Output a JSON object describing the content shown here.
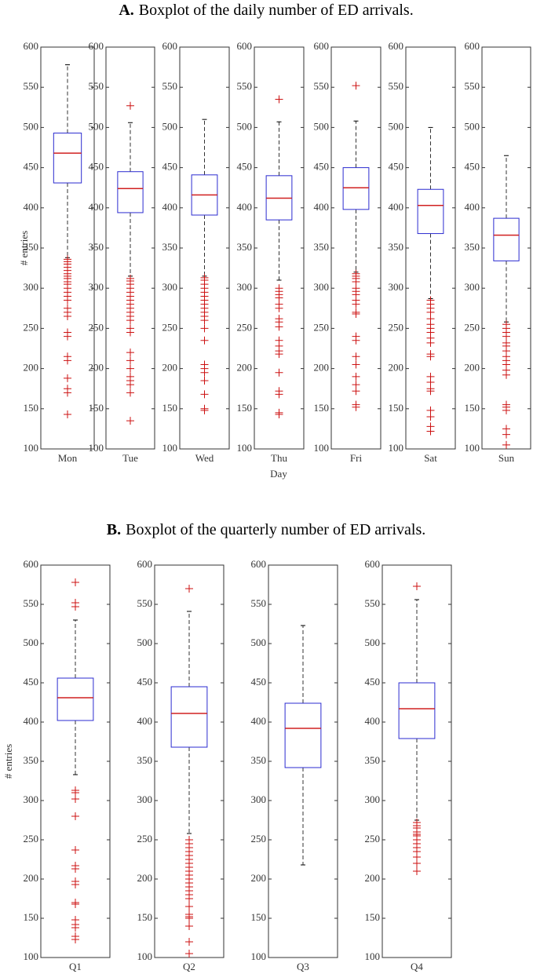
{
  "chart_data": [
    {
      "type": "box",
      "label": "A.",
      "title": "Boxplot of the daily number of ED arrivals.",
      "ylabel": "# entries",
      "xlabel": "Day",
      "ylim": [
        100,
        600
      ],
      "yticks": [
        100,
        150,
        200,
        250,
        300,
        350,
        400,
        450,
        500,
        550,
        600
      ],
      "box_color": "#2b2bd0",
      "median_color": "#d02020",
      "flier_color": "#cc1111",
      "categories": [
        "Mon",
        "Tue",
        "Wed",
        "Thu",
        "Fri",
        "Sat",
        "Sun"
      ],
      "boxes": [
        {
          "whislo": 338,
          "q1": 431,
          "med": 468,
          "q3": 493,
          "whishi": 578,
          "fliers": [
            336,
            333,
            330,
            326,
            322,
            318,
            315,
            312,
            308,
            305,
            300,
            295,
            290,
            285,
            275,
            270,
            265,
            245,
            240,
            215,
            210,
            188,
            175,
            170,
            143
          ]
        },
        {
          "whislo": 315,
          "q1": 394,
          "med": 424,
          "q3": 445,
          "whishi": 506,
          "fliers": [
            527,
            312,
            309,
            305,
            300,
            295,
            290,
            285,
            280,
            275,
            270,
            265,
            260,
            250,
            245,
            220,
            210,
            200,
            190,
            185,
            180,
            170,
            135
          ]
        },
        {
          "whislo": 315,
          "q1": 391,
          "med": 416,
          "q3": 441,
          "whishi": 510,
          "fliers": [
            313,
            310,
            305,
            300,
            295,
            290,
            285,
            280,
            275,
            270,
            265,
            260,
            250,
            235,
            205,
            200,
            195,
            185,
            168,
            150,
            148
          ]
        },
        {
          "whislo": 310,
          "q1": 385,
          "med": 412,
          "q3": 440,
          "whishi": 507,
          "fliers": [
            535,
            300,
            296,
            292,
            288,
            280,
            275,
            262,
            258,
            252,
            235,
            228,
            222,
            218,
            195,
            172,
            168,
            145,
            143
          ]
        },
        {
          "whislo": 320,
          "q1": 398,
          "med": 425,
          "q3": 450,
          "whishi": 508,
          "fliers": [
            552,
            318,
            315,
            312,
            308,
            300,
            296,
            292,
            285,
            280,
            270,
            268,
            240,
            235,
            215,
            205,
            190,
            180,
            172,
            155,
            152
          ]
        },
        {
          "whislo": 287,
          "q1": 368,
          "med": 403,
          "q3": 423,
          "whishi": 500,
          "fliers": [
            285,
            280,
            275,
            270,
            262,
            255,
            250,
            245,
            238,
            232,
            218,
            215,
            190,
            183,
            175,
            172,
            148,
            140,
            128,
            122
          ]
        },
        {
          "whislo": 258,
          "q1": 334,
          "med": 366,
          "q3": 387,
          "whishi": 465,
          "fliers": [
            255,
            250,
            245,
            240,
            232,
            228,
            222,
            215,
            210,
            205,
            198,
            192,
            155,
            152,
            148,
            125,
            118,
            105
          ]
        }
      ]
    },
    {
      "type": "box",
      "label": "B.",
      "title": "Boxplot of the quarterly number of ED arrivals.",
      "ylabel": "# entries",
      "ylim": [
        100,
        600
      ],
      "yticks": [
        100,
        150,
        200,
        250,
        300,
        350,
        400,
        450,
        500,
        550,
        600
      ],
      "box_color": "#2b2bd0",
      "median_color": "#d02020",
      "flier_color": "#cc1111",
      "categories": [
        "Q1",
        "Q2",
        "Q3",
        "Q4"
      ],
      "boxes": [
        {
          "whislo": 333,
          "q1": 402,
          "med": 431,
          "q3": 456,
          "whishi": 530,
          "fliers": [
            578,
            552,
            547,
            313,
            310,
            302,
            280,
            237,
            217,
            213,
            197,
            193,
            170,
            168,
            148,
            142,
            138,
            127,
            123
          ]
        },
        {
          "whislo": 258,
          "q1": 368,
          "med": 411,
          "q3": 445,
          "whishi": 541,
          "fliers": [
            570,
            250,
            245,
            240,
            235,
            230,
            225,
            220,
            215,
            210,
            205,
            200,
            195,
            190,
            185,
            180,
            175,
            165,
            155,
            152,
            150,
            140,
            120,
            105
          ]
        },
        {
          "whislo": 218,
          "q1": 342,
          "med": 392,
          "q3": 424,
          "whishi": 523,
          "fliers": []
        },
        {
          "whislo": 275,
          "q1": 379,
          "med": 417,
          "q3": 450,
          "whishi": 556,
          "fliers": [
            573,
            272,
            268,
            265,
            260,
            257,
            255,
            250,
            245,
            240,
            235,
            228,
            220,
            210
          ]
        }
      ]
    }
  ]
}
